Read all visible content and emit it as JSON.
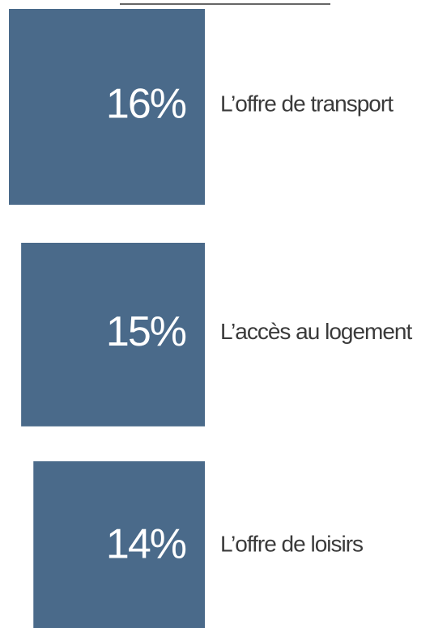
{
  "chart_data": {
    "type": "square",
    "categories": [
      "L’offre de transport",
      "L’accès au logement",
      "L’offre de loisirs"
    ],
    "values": [
      16,
      15,
      14
    ],
    "value_labels": [
      "16%",
      "15%",
      "14%"
    ],
    "color": "#4a6a8a"
  }
}
